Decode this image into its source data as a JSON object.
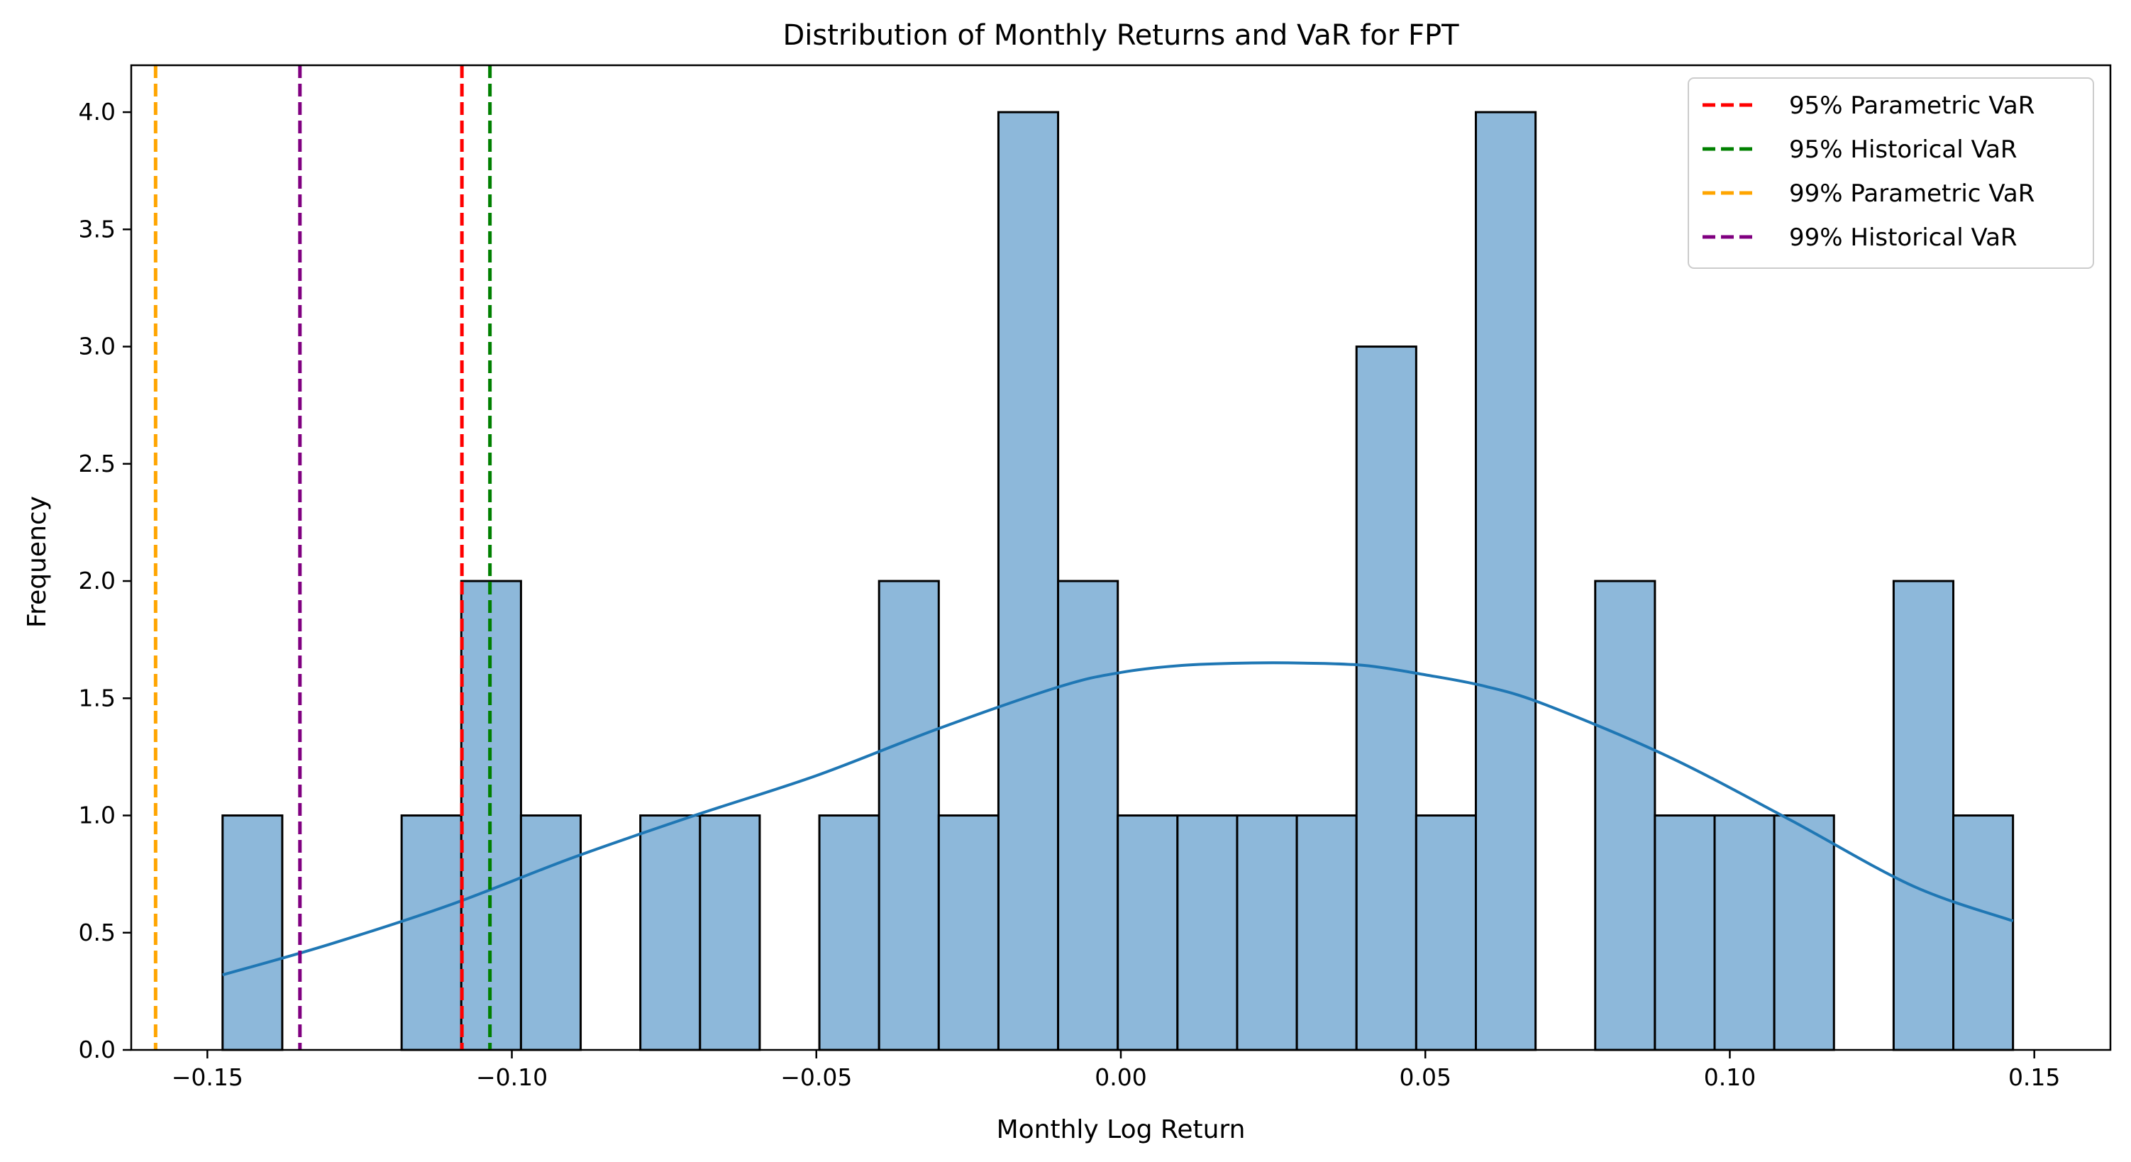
{
  "chart_data": {
    "type": "bar",
    "title": "Distribution of Monthly Returns and VaR for FPT",
    "xlabel": "Monthly Log Return",
    "ylabel": "Frequency",
    "xlim": [
      -0.1625,
      0.1625
    ],
    "ylim": [
      0,
      4.2
    ],
    "x_ticks": [
      -0.15,
      -0.1,
      -0.05,
      0.0,
      0.05,
      0.1,
      0.15
    ],
    "x_tick_labels": [
      "−0.15",
      "−0.10",
      "−0.05",
      "0.00",
      "0.05",
      "0.10",
      "0.15"
    ],
    "y_ticks": [
      0.0,
      0.5,
      1.0,
      1.5,
      2.0,
      2.5,
      3.0,
      3.5,
      4.0
    ],
    "y_tick_labels": [
      "0.0",
      "0.5",
      "1.0",
      "1.5",
      "2.0",
      "2.5",
      "3.0",
      "3.5",
      "4.0"
    ],
    "bar_color": "#8db8da",
    "bar_edge_color": "#000000",
    "bin_edges": [
      -0.1475,
      -0.1377,
      -0.1279,
      -0.1181,
      -0.1083,
      -0.0985,
      -0.0887,
      -0.0789,
      -0.0691,
      -0.0593,
      -0.0495,
      -0.0397,
      -0.0299,
      -0.0201,
      -0.0103,
      -0.0005,
      0.0093,
      0.0191,
      0.0289,
      0.0387,
      0.0485,
      0.0583,
      0.0681,
      0.0779,
      0.0877,
      0.0975,
      0.1073,
      0.1171,
      0.1269,
      0.1367,
      0.1465
    ],
    "counts": [
      1,
      0,
      0,
      1,
      2,
      1,
      0,
      1,
      1,
      0,
      1,
      2,
      1,
      4,
      2,
      1,
      1,
      1,
      1,
      3,
      1,
      4,
      0,
      2,
      1,
      1,
      1,
      0,
      2,
      1
    ],
    "kde": {
      "color": "#1f77b4",
      "x": [
        -0.1475,
        -0.13,
        -0.11,
        -0.09,
        -0.07,
        -0.05,
        -0.03,
        -0.01,
        0.0,
        0.01,
        0.02,
        0.03,
        0.04,
        0.05,
        0.06,
        0.07,
        0.09,
        0.11,
        0.13,
        0.1465
      ],
      "y": [
        0.32,
        0.45,
        0.62,
        0.82,
        1.0,
        1.17,
        1.37,
        1.55,
        1.61,
        1.64,
        1.65,
        1.65,
        1.64,
        1.6,
        1.55,
        1.47,
        1.25,
        0.98,
        0.7,
        0.55
      ]
    },
    "var_lines": [
      {
        "name": "95% Parametric VaR",
        "x": -0.1082,
        "color": "#ff0000"
      },
      {
        "name": "95% Historical VaR",
        "x": -0.1036,
        "color": "#008000"
      },
      {
        "name": "99% Parametric VaR",
        "x": -0.1585,
        "color": "#ffa500"
      },
      {
        "name": "99% Historical VaR",
        "x": -0.1348,
        "color": "#800080"
      }
    ],
    "legend_position": "top-right",
    "grid": false
  }
}
